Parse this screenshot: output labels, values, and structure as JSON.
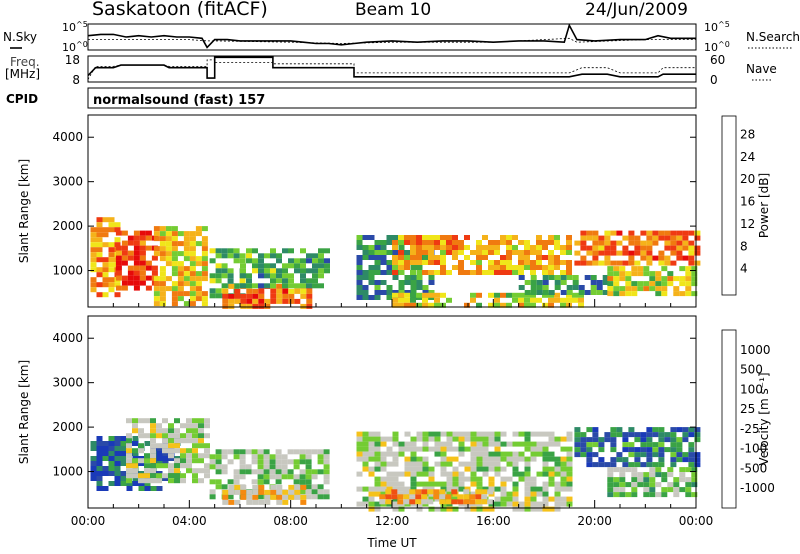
{
  "header": {
    "station": "Saskatoon (fitACF)",
    "beam": "Beam 10",
    "date": "24/Jun/2009"
  },
  "labels": {
    "nsky": "N.Sky",
    "freq_line1": "Freq.",
    "freq_line2": "[MHz]",
    "cpid": "CPID",
    "nsearch": "N.Search",
    "nave": "Nave",
    "cpid_value": "normalsound (fast) 157"
  },
  "colors": {
    "power": [
      "#1a1aff",
      "#2a4aa8",
      "#2e8a66",
      "#3aa345",
      "#74cc33",
      "#f0e51a",
      "#f5b21a",
      "#f07a10",
      "#ef3a12",
      "#e60a0a"
    ],
    "velocity": [
      "#e60a0a",
      "#f05012",
      "#f58a10",
      "#f5c21a",
      "#c8c8c0",
      "#c8c8c0",
      "#74cc33",
      "#3aa345",
      "#2e8a66",
      "#2a4aa8",
      "#1a3ab8"
    ]
  },
  "chart_data": [
    {
      "type": "line",
      "panel": "N.Sky / N.Search",
      "yticks": [
        "10^5",
        "10^0"
      ],
      "right_yticks": [
        "10^5",
        "10^0"
      ],
      "series": [
        {
          "name": "N.Sky",
          "points": [
            [
              0,
              0.55
            ],
            [
              0.5,
              0.6
            ],
            [
              1,
              0.6
            ],
            [
              1.5,
              0.5
            ],
            [
              2,
              0.55
            ],
            [
              2.5,
              0.5
            ],
            [
              3,
              0.55
            ],
            [
              3.5,
              0.5
            ],
            [
              4,
              0.5
            ],
            [
              4.5,
              0.45
            ],
            [
              4.7,
              0.1
            ],
            [
              5,
              0.4
            ],
            [
              5.5,
              0.4
            ],
            [
              6,
              0.35
            ],
            [
              7,
              0.35
            ],
            [
              8,
              0.35
            ],
            [
              8.5,
              0.3
            ],
            [
              9,
              0.25
            ],
            [
              9.5,
              0.25
            ],
            [
              10,
              0.2
            ],
            [
              10.5,
              0.25
            ],
            [
              11,
              0.3
            ],
            [
              12,
              0.35
            ],
            [
              13,
              0.3
            ],
            [
              14,
              0.35
            ],
            [
              15,
              0.35
            ],
            [
              16,
              0.3
            ],
            [
              17,
              0.35
            ],
            [
              18,
              0.35
            ],
            [
              18.8,
              0.3
            ],
            [
              19,
              0.95
            ],
            [
              19.3,
              0.4
            ],
            [
              20,
              0.35
            ],
            [
              21,
              0.4
            ],
            [
              22,
              0.4
            ],
            [
              22.5,
              0.55
            ],
            [
              23,
              0.45
            ],
            [
              24,
              0.45
            ]
          ]
        },
        {
          "name": "N.Search",
          "points": [
            [
              0,
              0.4
            ],
            [
              2,
              0.4
            ],
            [
              4,
              0.4
            ],
            [
              4.7,
              0.35
            ],
            [
              5,
              0.35
            ],
            [
              8,
              0.3
            ],
            [
              10,
              0.25
            ],
            [
              12,
              0.3
            ],
            [
              16,
              0.3
            ],
            [
              19,
              0.45
            ],
            [
              19.3,
              0.3
            ],
            [
              22,
              0.4
            ],
            [
              24,
              0.4
            ]
          ]
        }
      ]
    },
    {
      "type": "line",
      "panel": "Freq. / Nave",
      "yticks": [
        "18",
        "8"
      ],
      "right_yticks": [
        "60",
        "0"
      ],
      "series": [
        {
          "name": "Freq.",
          "points": [
            [
              0,
              0.25
            ],
            [
              0.3,
              0.55
            ],
            [
              1,
              0.55
            ],
            [
              1.3,
              0.65
            ],
            [
              3,
              0.65
            ],
            [
              3.2,
              0.55
            ],
            [
              4.7,
              0.55
            ],
            [
              4.7,
              0.15
            ],
            [
              5,
              0.15
            ],
            [
              5,
              0.95
            ],
            [
              7.3,
              0.95
            ],
            [
              7.3,
              0.55
            ],
            [
              8,
              0.55
            ],
            [
              10.5,
              0.55
            ],
            [
              10.5,
              0.2
            ],
            [
              19,
              0.2
            ],
            [
              19.5,
              0.3
            ],
            [
              20.5,
              0.3
            ],
            [
              21,
              0.2
            ],
            [
              22.5,
              0.2
            ],
            [
              22.7,
              0.3
            ],
            [
              24,
              0.3
            ]
          ]
        },
        {
          "name": "Nave",
          "points": [
            [
              0,
              0.1
            ],
            [
              0.3,
              0.6
            ],
            [
              1,
              0.6
            ],
            [
              1.3,
              0.65
            ],
            [
              3,
              0.65
            ],
            [
              3.2,
              0.6
            ],
            [
              4.7,
              0.6
            ],
            [
              4.7,
              0.85
            ],
            [
              5,
              0.85
            ],
            [
              5,
              0.75
            ],
            [
              7.3,
              0.75
            ],
            [
              7.3,
              0.7
            ],
            [
              8,
              0.7
            ],
            [
              10.5,
              0.7
            ],
            [
              10.5,
              0.35
            ],
            [
              19,
              0.35
            ],
            [
              19.5,
              0.55
            ],
            [
              20.5,
              0.55
            ],
            [
              21,
              0.35
            ],
            [
              22.5,
              0.35
            ],
            [
              22.7,
              0.55
            ],
            [
              24,
              0.55
            ]
          ]
        }
      ]
    },
    {
      "type": "heatmap",
      "panel": "Power",
      "ylabel": "Slant Range [km]",
      "xlim": [
        0,
        24
      ],
      "ylim": [
        180,
        4500
      ],
      "yticks": [
        1000,
        2000,
        3000,
        4000
      ],
      "colorbar": {
        "label": "Power [dB]",
        "ticks": [
          4,
          8,
          12,
          16,
          20,
          24,
          28
        ]
      },
      "regions": [
        {
          "t": [
            0.1,
            1.1
          ],
          "r": [
            500,
            2200
          ],
          "level": 0.7
        },
        {
          "t": [
            1.1,
            2.6
          ],
          "r": [
            550,
            1900
          ],
          "level": 0.85
        },
        {
          "t": [
            2.6,
            4.6
          ],
          "r": [
            300,
            2000
          ],
          "level": 0.6
        },
        {
          "t": [
            4.8,
            6.2
          ],
          "r": [
            400,
            1500
          ],
          "level": 0.35
        },
        {
          "t": [
            5.3,
            8.7
          ],
          "r": [
            200,
            700
          ],
          "level": 0.75
        },
        {
          "t": [
            6.0,
            9.4
          ],
          "r": [
            700,
            1500
          ],
          "level": 0.35
        },
        {
          "t": [
            10.6,
            13.5
          ],
          "r": [
            400,
            1800
          ],
          "level": 0.3
        },
        {
          "t": [
            12.0,
            19.0
          ],
          "r": [
            1000,
            1800
          ],
          "level": 0.65
        },
        {
          "t": [
            12.0,
            19.5
          ],
          "r": [
            200,
            500
          ],
          "level": 0.55
        },
        {
          "t": [
            17.0,
            20.5
          ],
          "r": [
            500,
            900
          ],
          "level": 0.3
        },
        {
          "t": [
            19.2,
            24.0
          ],
          "r": [
            1200,
            1900
          ],
          "level": 0.75
        },
        {
          "t": [
            20.5,
            24.0
          ],
          "r": [
            500,
            1100
          ],
          "level": 0.55
        }
      ]
    },
    {
      "type": "heatmap",
      "panel": "Velocity",
      "ylabel": "Slant Range [km]",
      "xlabel": "Time UT",
      "xlim": [
        0,
        24
      ],
      "ylim": [
        180,
        4500
      ],
      "yticks": [
        1000,
        2000,
        3000,
        4000
      ],
      "xticks": [
        "00:00",
        "04:00",
        "08:00",
        "12:00",
        "16:00",
        "20:00",
        "00:00"
      ],
      "colorbar": {
        "label": "Velocity [m s⁻¹]",
        "ticks": [
          1000,
          500,
          100,
          25,
          -25,
          -100,
          -500,
          -1000
        ]
      },
      "regions": [
        {
          "t": [
            0.1,
            3.5
          ],
          "r": [
            600,
            1800
          ],
          "level": 0.85
        },
        {
          "t": [
            1.5,
            4.6
          ],
          "r": [
            800,
            2200
          ],
          "level": 0.5
        },
        {
          "t": [
            4.8,
            9.4
          ],
          "r": [
            400,
            1500
          ],
          "level": 0.55
        },
        {
          "t": [
            5.3,
            8.5
          ],
          "r": [
            300,
            700
          ],
          "level": 0.35
        },
        {
          "t": [
            10.6,
            19.0
          ],
          "r": [
            200,
            1900
          ],
          "level": 0.5
        },
        {
          "t": [
            11.5,
            16.0
          ],
          "r": [
            300,
            600
          ],
          "level": 0.3
        },
        {
          "t": [
            19.2,
            24.0
          ],
          "r": [
            1100,
            2000
          ],
          "level": 0.78
        },
        {
          "t": [
            20.5,
            24.0
          ],
          "r": [
            500,
            1100
          ],
          "level": 0.6
        }
      ]
    }
  ]
}
